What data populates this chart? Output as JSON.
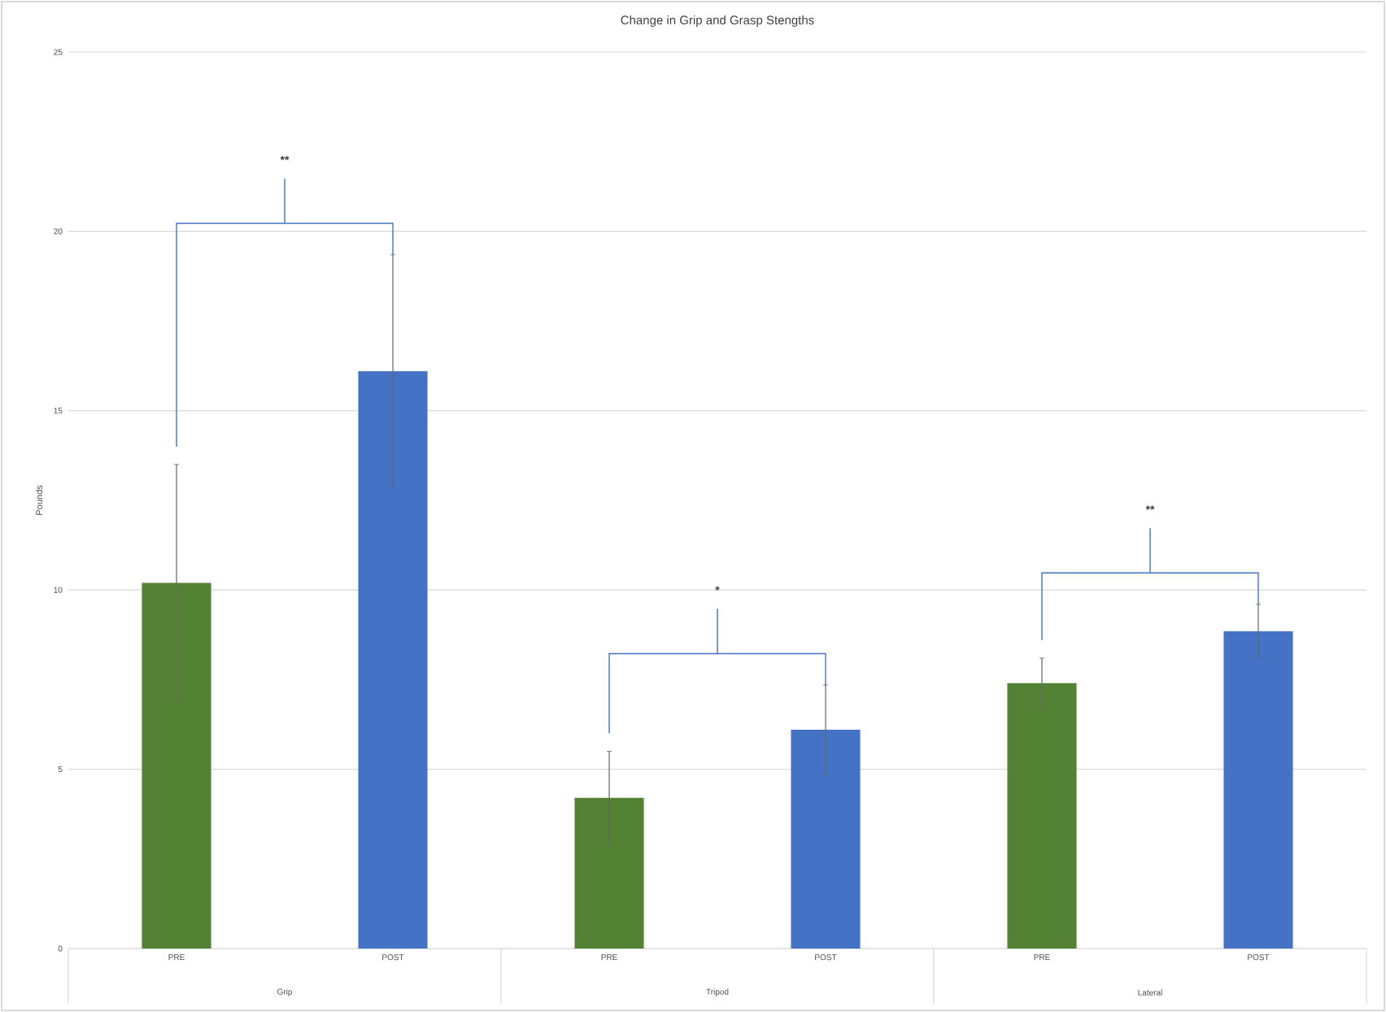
{
  "chart_data": {
    "type": "bar",
    "title": "Change in Grip and Grasp Stengths",
    "ylabel": "Pounds",
    "categories": [
      "PRE",
      "POST",
      "PRE",
      "POST",
      "PRE",
      "POST"
    ],
    "values": [
      10.2,
      16.1,
      4.2,
      6.1,
      7.4,
      8.85
    ],
    "errors": [
      3.3,
      3.25,
      1.3,
      1.25,
      0.7,
      0.75
    ],
    "colors": [
      "#548235",
      "#4472c4",
      "#548235",
      "#4472c4",
      "#548235",
      "#4472c4"
    ],
    "ylim": [
      0,
      25
    ],
    "yticks": [
      0,
      5,
      10,
      15,
      20,
      25
    ],
    "grid": "y",
    "annotations": [
      "Grip",
      "Tripod",
      "Lateral",
      "**",
      "*",
      "**"
    ]
  }
}
